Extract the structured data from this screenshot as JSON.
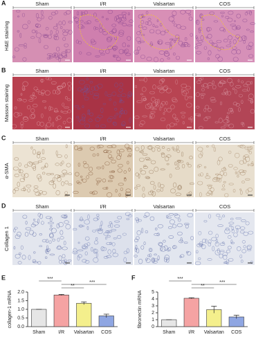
{
  "panels": [
    {
      "letter": "A",
      "label": "H&E staining",
      "columns": [
        "Sham",
        "I/R",
        "Valsartan",
        "COS"
      ]
    },
    {
      "letter": "B",
      "label": "Masson staining",
      "columns": [
        "Sham",
        "I/R",
        "Valsartan",
        "COS"
      ]
    },
    {
      "letter": "C",
      "label": "α-SMA",
      "columns": [
        "Sham",
        "I/R",
        "Valsartan",
        "COS"
      ]
    },
    {
      "letter": "D",
      "label": "Collagen 1",
      "columns": [
        "Sham",
        "I/R",
        "Valsartan",
        "COS"
      ]
    }
  ],
  "chart_data": [
    {
      "type": "bar",
      "letter": "E",
      "y_label": "collagen-1 mRNA",
      "categories": [
        "Sham",
        "I/R",
        "Valsartan",
        "COS"
      ],
      "values": [
        1.0,
        1.83,
        1.35,
        0.62
      ],
      "errors": [
        0,
        0.03,
        0.08,
        0.1
      ],
      "colors": [
        "#e6e6e6",
        "#f5a3a3",
        "#f4ef8c",
        "#8fa6e2"
      ],
      "ylim": [
        0,
        2.0
      ],
      "yticks": [
        {
          "value": 0,
          "label": "0.0"
        },
        0.5,
        {
          "value": 1,
          "label": "1.0"
        },
        1.5,
        {
          "value": 2,
          "label": "2.0"
        }
      ],
      "annotations": [
        "***",
        "**",
        "***"
      ]
    },
    {
      "type": "bar",
      "letter": "F",
      "y_label": "fibronectin mRNA",
      "categories": [
        "Sham",
        "I/R",
        "Valsartan",
        "COS"
      ],
      "values": [
        1.0,
        4.1,
        2.45,
        1.4
      ],
      "errors": [
        0,
        0.08,
        0.5,
        0.25
      ],
      "colors": [
        "#e6e6e6",
        "#f5a3a3",
        "#f4ef8c",
        "#8fa6e2"
      ],
      "ylim": [
        0,
        5
      ],
      "yticks": [
        0,
        1,
        2,
        3,
        4,
        5
      ],
      "annotations": [
        "***",
        "**",
        "***"
      ]
    }
  ]
}
